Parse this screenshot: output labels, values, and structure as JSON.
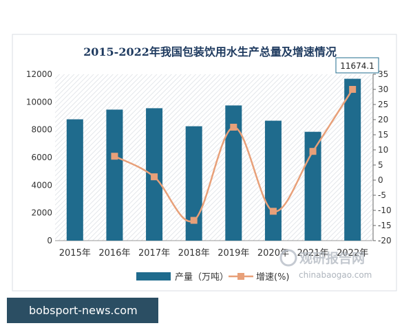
{
  "chart_data": {
    "type": "bar+line",
    "title": "2015-2022年我国包装饮用水生产总量及增速情况",
    "categories": [
      "2015年",
      "2016年",
      "2017年",
      "2018年",
      "2019年",
      "2020年",
      "2021年",
      "2022年"
    ],
    "series": [
      {
        "name": "产量（万吨）",
        "type": "bar",
        "axis": "left",
        "values": [
          8750,
          9450,
          9550,
          8250,
          9750,
          8650,
          7850,
          11674.1
        ]
      },
      {
        "name": "增速(%)",
        "type": "line",
        "axis": "right",
        "values": [
          null,
          7.9,
          1.1,
          -13.3,
          17.5,
          -10.3,
          9.5,
          30
        ]
      }
    ],
    "left_ticks": [
      "0",
      "2000",
      "4000",
      "6000",
      "8000",
      "10000",
      "12000"
    ],
    "right_ticks": [
      "-20",
      "-15",
      "-10",
      "-5",
      "0",
      "5",
      "10",
      "15",
      "20",
      "25",
      "30",
      "35"
    ],
    "ylim_left": [
      0,
      12000
    ],
    "ylim_right": [
      -20,
      35
    ],
    "annotation": "11674.1",
    "legend_position": "bottom",
    "colors": {
      "bar": "#1f6b8d",
      "line": "#e8a079",
      "title": "#1e3a5f"
    }
  },
  "watermark": {
    "brand": "观研报告网",
    "url": "chinabaogao.com"
  },
  "footer": {
    "text": "bobsport-news.com"
  }
}
